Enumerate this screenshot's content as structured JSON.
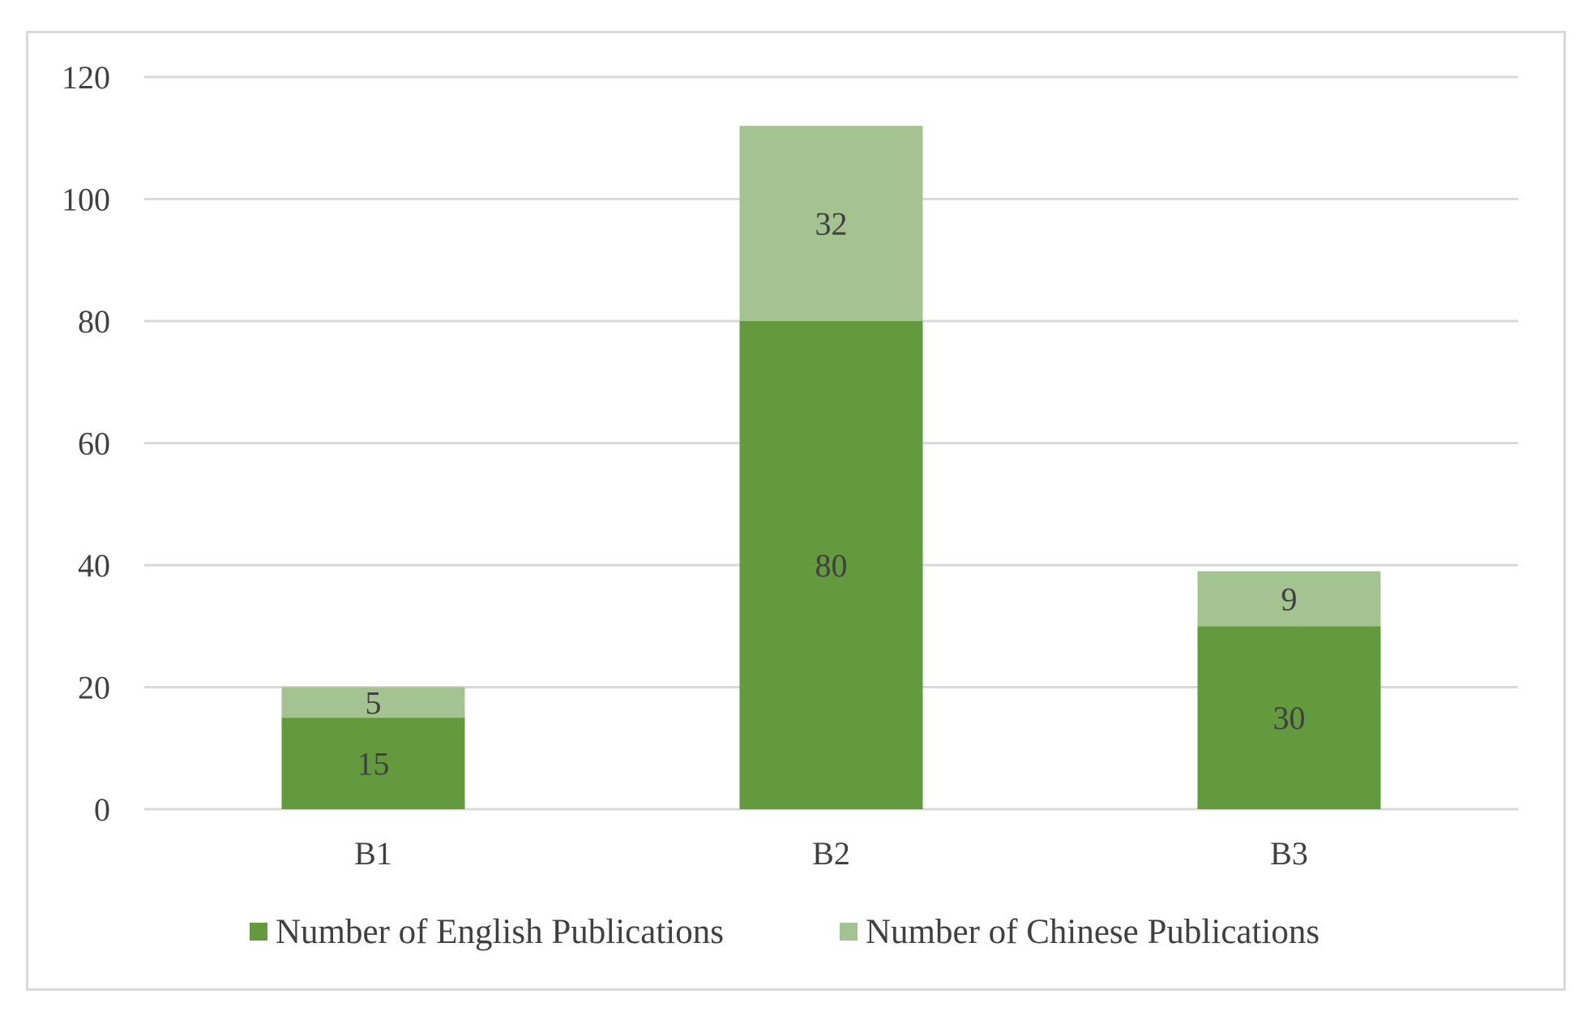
{
  "chart_data": {
    "type": "bar",
    "stacked": true,
    "categories": [
      "B1",
      "B2",
      "B3"
    ],
    "series": [
      {
        "name": "Number of English Publications",
        "values": [
          15,
          80,
          30
        ],
        "color": "#629a3d"
      },
      {
        "name": "Number of Chinese Publications",
        "values": [
          5,
          32,
          9
        ],
        "color": "#a3c490"
      }
    ],
    "ylim": [
      0,
      120
    ],
    "yticks": [
      0,
      20,
      40,
      60,
      80,
      100,
      120
    ],
    "grid": true,
    "legend_position": "bottom",
    "data_labels": true,
    "colors": {
      "grid": "#d9d9d9",
      "text": "#404040",
      "frame": "#d9d9d9"
    }
  }
}
